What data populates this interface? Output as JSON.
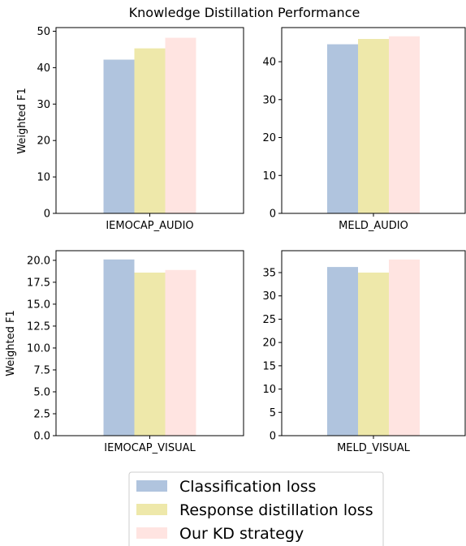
{
  "chart_data": {
    "type": "bar",
    "title": "Knowledge Distillation Performance",
    "ylabel": "Weighted F1",
    "series_names": [
      "Classification loss",
      "Response distillation loss",
      "Our KD strategy"
    ],
    "colors": [
      "#b0c4de",
      "#eee8aa",
      "#ffe4e1"
    ],
    "legend_placement": "bottom-center",
    "grid": false,
    "panels": [
      {
        "category": "IEMOCAP_AUDIO",
        "values": [
          42.2,
          45.3,
          48.2
        ],
        "ylim": [
          0,
          51
        ],
        "yticks": [
          0,
          10,
          20,
          30,
          40,
          50
        ],
        "yticklabels": [
          "0",
          "10",
          "20",
          "30",
          "40",
          "50"
        ],
        "show_ylabel": true
      },
      {
        "category": "MELD_AUDIO",
        "values": [
          44.6,
          46.0,
          46.7
        ],
        "ylim": [
          0,
          49
        ],
        "yticks": [
          0,
          10,
          20,
          30,
          40
        ],
        "yticklabels": [
          "0",
          "10",
          "20",
          "30",
          "40"
        ],
        "show_ylabel": false
      },
      {
        "category": "IEMOCAP_VISUAL",
        "values": [
          20.1,
          18.6,
          18.9
        ],
        "ylim": [
          0,
          21.1
        ],
        "yticks": [
          0,
          2.5,
          5,
          7.5,
          10,
          12.5,
          15,
          17.5,
          20
        ],
        "yticklabels": [
          "0.0",
          "2.5",
          "5.0",
          "7.5",
          "10.0",
          "12.5",
          "15.0",
          "17.5",
          "20.0"
        ],
        "show_ylabel": true
      },
      {
        "category": "MELD_VISUAL",
        "values": [
          36.2,
          35.0,
          37.8
        ],
        "ylim": [
          0,
          39.7
        ],
        "yticks": [
          0,
          5,
          10,
          15,
          20,
          25,
          30,
          35
        ],
        "yticklabels": [
          "0",
          "5",
          "10",
          "15",
          "20",
          "25",
          "30",
          "35"
        ],
        "show_ylabel": false
      }
    ]
  }
}
